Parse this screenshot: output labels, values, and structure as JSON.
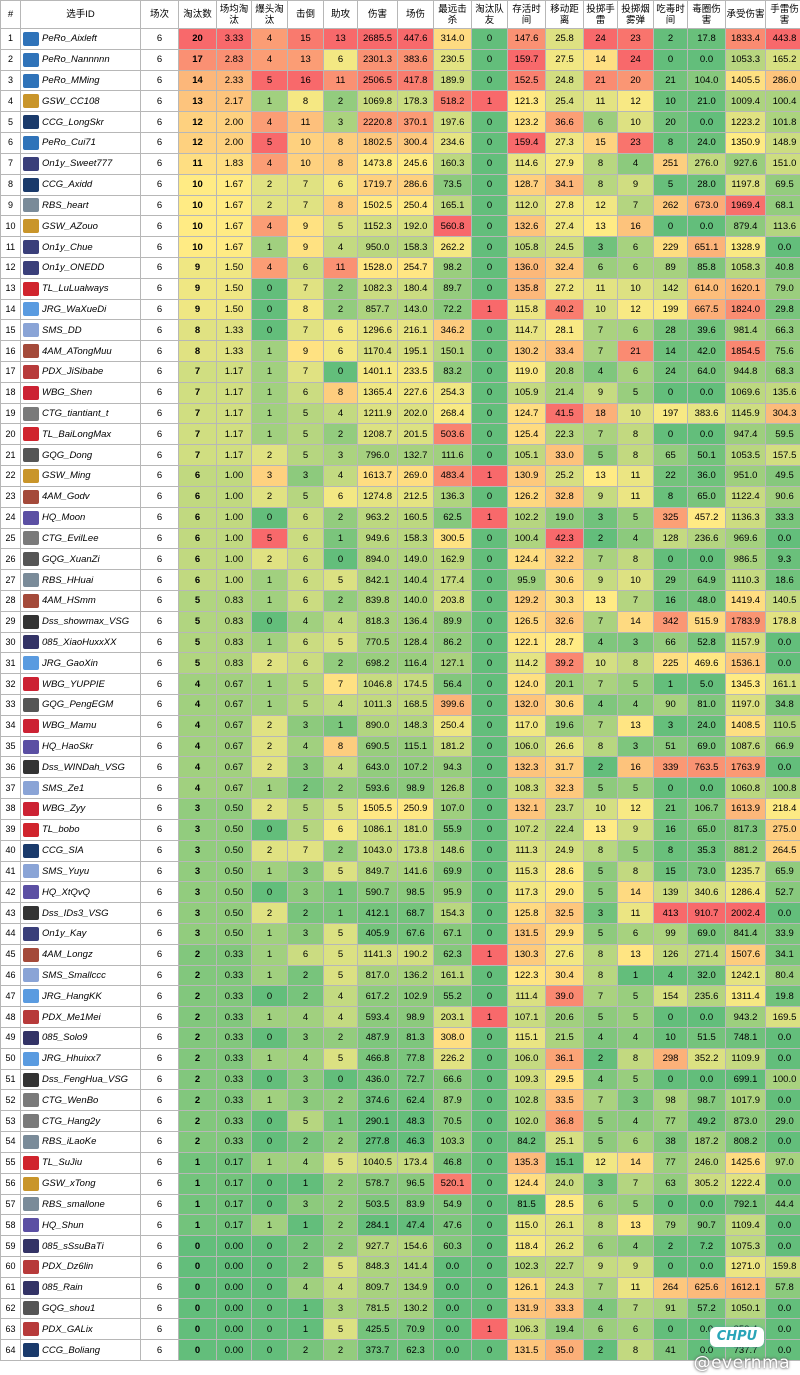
{
  "headers": [
    "#",
    "选手ID",
    "场次",
    "淘汰数",
    "场均淘汰",
    "爆头淘汰",
    "击倒",
    "助攻",
    "伤害",
    "场伤",
    "最远击杀",
    "淘汰队友",
    "存活时间",
    "移动距离",
    "投掷手雷",
    "投掷烟雾弹",
    "吃毒时间",
    "毒圈伤害",
    "承受伤害",
    "手雷伤害"
  ],
  "logo_colors": {
    "PeRo": "#2f73b9",
    "GSW": "#c9952a",
    "CCG": "#1a3a6b",
    "On1y": "#3a3f7a",
    "RBS": "#7a8b99",
    "TL": "#d0242d",
    "JRG": "#5a9be0",
    "SMS": "#8aa4d6",
    "4AM": "#a44a3a",
    "PDX": "#b73a3a",
    "WBG": "#cc2233",
    "CTG": "#7a7a7a",
    "GQG": "#555555",
    "HQ": "#5b4fa3",
    "Dss": "#333333",
    "085": "#333366"
  },
  "rows": [
    [
      "1",
      "PeRo_Aixleft",
      "6",
      "20",
      "3.33",
      "4",
      "15",
      "13",
      "2685.5",
      "447.6",
      "314.0",
      "0",
      "147.6",
      "25.8",
      "24",
      "23",
      "2",
      "17.8",
      "1833.4",
      "443.8"
    ],
    [
      "2",
      "PeRo_Nannnnn",
      "6",
      "17",
      "2.83",
      "4",
      "13",
      "6",
      "2301.3",
      "383.6",
      "230.5",
      "0",
      "159.7",
      "27.5",
      "14",
      "24",
      "0",
      "0.0",
      "1053.3",
      "165.2"
    ],
    [
      "3",
      "PeRo_MMing",
      "6",
      "14",
      "2.33",
      "5",
      "16",
      "11",
      "2506.5",
      "417.8",
      "189.9",
      "0",
      "152.5",
      "24.8",
      "21",
      "20",
      "21",
      "104.0",
      "1405.5",
      "286.0"
    ],
    [
      "4",
      "GSW_CC108",
      "6",
      "13",
      "2.17",
      "1",
      "8",
      "2",
      "1069.8",
      "178.3",
      "518.2",
      "1",
      "121.3",
      "25.4",
      "11",
      "12",
      "10",
      "21.0",
      "1009.4",
      "100.4"
    ],
    [
      "5",
      "CCG_LongSkr",
      "6",
      "12",
      "2.00",
      "4",
      "11",
      "3",
      "2220.8",
      "370.1",
      "197.6",
      "0",
      "123.2",
      "36.6",
      "6",
      "10",
      "20",
      "0.0",
      "1223.2",
      "101.8"
    ],
    [
      "6",
      "PeRo_Cui71",
      "6",
      "12",
      "2.00",
      "5",
      "10",
      "8",
      "1802.5",
      "300.4",
      "234.6",
      "0",
      "159.4",
      "27.3",
      "15",
      "23",
      "8",
      "24.0",
      "1350.9",
      "148.9"
    ],
    [
      "7",
      "On1y_Sweet777",
      "6",
      "11",
      "1.83",
      "4",
      "10",
      "8",
      "1473.8",
      "245.6",
      "160.3",
      "0",
      "114.6",
      "27.9",
      "8",
      "4",
      "251",
      "276.0",
      "927.6",
      "151.0"
    ],
    [
      "8",
      "CCG_Axidd",
      "6",
      "10",
      "1.67",
      "2",
      "7",
      "6",
      "1719.7",
      "286.6",
      "73.5",
      "0",
      "128.7",
      "34.1",
      "8",
      "9",
      "5",
      "28.0",
      "1197.8",
      "69.5"
    ],
    [
      "9",
      "RBS_heart",
      "6",
      "10",
      "1.67",
      "2",
      "7",
      "8",
      "1502.5",
      "250.4",
      "165.1",
      "0",
      "112.0",
      "27.8",
      "12",
      "7",
      "262",
      "673.0",
      "1969.4",
      "68.1"
    ],
    [
      "10",
      "GSW_AZouo",
      "6",
      "10",
      "1.67",
      "4",
      "9",
      "5",
      "1152.3",
      "192.0",
      "560.8",
      "0",
      "132.6",
      "27.4",
      "13",
      "16",
      "0",
      "0.0",
      "879.4",
      "113.6"
    ],
    [
      "11",
      "On1y_Chue",
      "6",
      "10",
      "1.67",
      "1",
      "9",
      "4",
      "950.0",
      "158.3",
      "262.2",
      "0",
      "105.8",
      "24.5",
      "3",
      "6",
      "229",
      "651.1",
      "1328.9",
      "0.0"
    ],
    [
      "12",
      "On1y_ONEDD",
      "6",
      "9",
      "1.50",
      "4",
      "6",
      "11",
      "1528.0",
      "254.7",
      "98.2",
      "0",
      "136.0",
      "32.4",
      "6",
      "6",
      "89",
      "85.8",
      "1058.3",
      "40.8"
    ],
    [
      "13",
      "TL_LuLualways",
      "6",
      "9",
      "1.50",
      "0",
      "7",
      "2",
      "1082.3",
      "180.4",
      "89.7",
      "0",
      "135.8",
      "27.2",
      "11",
      "10",
      "142",
      "614.0",
      "1620.1",
      "79.0"
    ],
    [
      "14",
      "JRG_WaXueDi",
      "6",
      "9",
      "1.50",
      "0",
      "8",
      "2",
      "857.7",
      "143.0",
      "72.2",
      "1",
      "115.8",
      "40.2",
      "10",
      "12",
      "199",
      "667.5",
      "1824.0",
      "29.8"
    ],
    [
      "15",
      "SMS_DD",
      "6",
      "8",
      "1.33",
      "0",
      "7",
      "6",
      "1296.6",
      "216.1",
      "346.2",
      "0",
      "114.7",
      "28.1",
      "7",
      "6",
      "28",
      "39.6",
      "981.4",
      "66.3"
    ],
    [
      "16",
      "4AM_ATongMuu",
      "6",
      "8",
      "1.33",
      "1",
      "9",
      "6",
      "1170.4",
      "195.1",
      "150.1",
      "0",
      "130.2",
      "33.4",
      "7",
      "21",
      "14",
      "42.0",
      "1854.5",
      "75.6"
    ],
    [
      "17",
      "PDX_JiSibabe",
      "6",
      "7",
      "1.17",
      "1",
      "7",
      "0",
      "1401.1",
      "233.5",
      "83.2",
      "0",
      "119.0",
      "20.8",
      "4",
      "6",
      "24",
      "64.0",
      "944.8",
      "68.3"
    ],
    [
      "18",
      "WBG_Shen",
      "6",
      "7",
      "1.17",
      "1",
      "6",
      "8",
      "1365.4",
      "227.6",
      "254.3",
      "0",
      "105.9",
      "21.4",
      "9",
      "5",
      "0",
      "0.0",
      "1069.6",
      "135.6"
    ],
    [
      "19",
      "CTG_tiantiant_t",
      "6",
      "7",
      "1.17",
      "1",
      "5",
      "4",
      "1211.9",
      "202.0",
      "268.4",
      "0",
      "124.7",
      "41.5",
      "18",
      "10",
      "197",
      "383.6",
      "1145.9",
      "304.3"
    ],
    [
      "20",
      "TL_BaiLongMax",
      "6",
      "7",
      "1.17",
      "1",
      "5",
      "2",
      "1208.7",
      "201.5",
      "503.6",
      "0",
      "125.4",
      "22.3",
      "7",
      "8",
      "0",
      "0.0",
      "947.4",
      "59.5"
    ],
    [
      "21",
      "GQG_Dong",
      "6",
      "7",
      "1.17",
      "2",
      "5",
      "3",
      "796.0",
      "132.7",
      "111.6",
      "0",
      "105.1",
      "33.0",
      "5",
      "8",
      "65",
      "50.1",
      "1053.5",
      "157.5"
    ],
    [
      "22",
      "GSW_Ming",
      "6",
      "6",
      "1.00",
      "3",
      "3",
      "4",
      "1613.7",
      "269.0",
      "483.4",
      "1",
      "130.9",
      "25.2",
      "13",
      "11",
      "22",
      "36.0",
      "951.0",
      "49.5"
    ],
    [
      "23",
      "4AM_Godv",
      "6",
      "6",
      "1.00",
      "2",
      "5",
      "6",
      "1274.8",
      "212.5",
      "136.3",
      "0",
      "126.2",
      "32.8",
      "9",
      "11",
      "8",
      "65.0",
      "1122.4",
      "90.6"
    ],
    [
      "24",
      "HQ_Moon",
      "6",
      "6",
      "1.00",
      "0",
      "6",
      "2",
      "963.2",
      "160.5",
      "62.5",
      "1",
      "102.2",
      "19.0",
      "3",
      "5",
      "325",
      "457.2",
      "1136.3",
      "33.3"
    ],
    [
      "25",
      "CTG_EvilLee",
      "6",
      "6",
      "1.00",
      "5",
      "6",
      "1",
      "949.6",
      "158.3",
      "300.5",
      "0",
      "100.4",
      "42.3",
      "2",
      "4",
      "128",
      "236.6",
      "969.6",
      "0.0"
    ],
    [
      "26",
      "GQG_XuanZi",
      "6",
      "6",
      "1.00",
      "2",
      "6",
      "0",
      "894.0",
      "149.0",
      "162.9",
      "0",
      "124.4",
      "32.2",
      "7",
      "8",
      "0",
      "0.0",
      "986.5",
      "9.3"
    ],
    [
      "27",
      "RBS_HHuai",
      "6",
      "6",
      "1.00",
      "1",
      "6",
      "5",
      "842.1",
      "140.4",
      "177.4",
      "0",
      "95.9",
      "30.6",
      "9",
      "10",
      "29",
      "64.9",
      "1110.3",
      "18.6"
    ],
    [
      "28",
      "4AM_HSmm",
      "6",
      "5",
      "0.83",
      "1",
      "6",
      "2",
      "839.8",
      "140.0",
      "203.8",
      "0",
      "129.2",
      "30.3",
      "13",
      "7",
      "16",
      "48.0",
      "1419.4",
      "140.5"
    ],
    [
      "29",
      "Dss_showmax_VSG",
      "6",
      "5",
      "0.83",
      "0",
      "4",
      "4",
      "818.3",
      "136.4",
      "89.9",
      "0",
      "126.5",
      "32.6",
      "7",
      "14",
      "342",
      "515.9",
      "1783.9",
      "178.8"
    ],
    [
      "30",
      "085_XiaoHuxxXX",
      "6",
      "5",
      "0.83",
      "1",
      "6",
      "5",
      "770.5",
      "128.4",
      "86.2",
      "0",
      "122.1",
      "28.7",
      "4",
      "3",
      "66",
      "52.8",
      "1157.9",
      "0.0"
    ],
    [
      "31",
      "JRG_GaoXin",
      "6",
      "5",
      "0.83",
      "2",
      "6",
      "2",
      "698.2",
      "116.4",
      "127.1",
      "0",
      "114.2",
      "39.2",
      "10",
      "8",
      "225",
      "469.6",
      "1536.1",
      "0.0"
    ],
    [
      "32",
      "WBG_YUPPIE",
      "6",
      "4",
      "0.67",
      "1",
      "5",
      "7",
      "1046.8",
      "174.5",
      "56.4",
      "0",
      "124.0",
      "20.1",
      "7",
      "5",
      "1",
      "5.0",
      "1345.3",
      "161.1"
    ],
    [
      "33",
      "GQG_PengEGM",
      "6",
      "4",
      "0.67",
      "1",
      "5",
      "4",
      "1011.3",
      "168.5",
      "399.6",
      "0",
      "132.0",
      "30.6",
      "4",
      "4",
      "90",
      "81.0",
      "1197.0",
      "34.8"
    ],
    [
      "34",
      "WBG_Mamu",
      "6",
      "4",
      "0.67",
      "2",
      "3",
      "1",
      "890.0",
      "148.3",
      "250.4",
      "0",
      "117.0",
      "19.6",
      "7",
      "13",
      "3",
      "24.0",
      "1408.5",
      "110.5"
    ],
    [
      "35",
      "HQ_HaoSkr",
      "6",
      "4",
      "0.67",
      "2",
      "4",
      "8",
      "690.5",
      "115.1",
      "181.2",
      "0",
      "106.0",
      "26.6",
      "8",
      "3",
      "51",
      "69.0",
      "1087.6",
      "66.9"
    ],
    [
      "36",
      "Dss_WINDah_VSG",
      "6",
      "4",
      "0.67",
      "2",
      "3",
      "4",
      "643.0",
      "107.2",
      "94.3",
      "0",
      "132.3",
      "31.7",
      "2",
      "16",
      "339",
      "763.5",
      "1763.9",
      "0.0"
    ],
    [
      "37",
      "SMS_Ze1",
      "6",
      "4",
      "0.67",
      "1",
      "2",
      "2",
      "593.6",
      "98.9",
      "126.8",
      "0",
      "108.3",
      "32.3",
      "5",
      "5",
      "0",
      "0.0",
      "1060.8",
      "100.8"
    ],
    [
      "38",
      "WBG_Zyy",
      "6",
      "3",
      "0.50",
      "2",
      "5",
      "5",
      "1505.5",
      "250.9",
      "107.0",
      "0",
      "132.1",
      "23.7",
      "10",
      "12",
      "21",
      "106.7",
      "1613.9",
      "218.4"
    ],
    [
      "39",
      "TL_bobo",
      "6",
      "3",
      "0.50",
      "0",
      "5",
      "6",
      "1086.1",
      "181.0",
      "55.9",
      "0",
      "107.2",
      "22.4",
      "13",
      "9",
      "16",
      "65.0",
      "817.3",
      "275.0"
    ],
    [
      "40",
      "CCG_SIA",
      "6",
      "3",
      "0.50",
      "2",
      "7",
      "2",
      "1043.0",
      "173.8",
      "148.6",
      "0",
      "111.3",
      "24.9",
      "8",
      "5",
      "8",
      "35.3",
      "881.2",
      "264.5"
    ],
    [
      "41",
      "SMS_Yuyu",
      "6",
      "3",
      "0.50",
      "1",
      "3",
      "5",
      "849.7",
      "141.6",
      "69.9",
      "0",
      "115.3",
      "28.6",
      "5",
      "8",
      "15",
      "73.0",
      "1235.7",
      "65.9"
    ],
    [
      "42",
      "HQ_XtQvQ",
      "6",
      "3",
      "0.50",
      "0",
      "3",
      "1",
      "590.7",
      "98.5",
      "95.9",
      "0",
      "117.3",
      "29.0",
      "5",
      "14",
      "139",
      "340.6",
      "1286.4",
      "52.7"
    ],
    [
      "43",
      "Dss_IDs3_VSG",
      "6",
      "3",
      "0.50",
      "2",
      "2",
      "1",
      "412.1",
      "68.7",
      "154.3",
      "0",
      "125.8",
      "32.5",
      "3",
      "11",
      "413",
      "910.7",
      "2002.4",
      "0.0"
    ],
    [
      "44",
      "On1y_Kay",
      "6",
      "3",
      "0.50",
      "1",
      "3",
      "5",
      "405.9",
      "67.6",
      "67.1",
      "0",
      "131.5",
      "29.9",
      "5",
      "6",
      "99",
      "69.0",
      "841.4",
      "33.9"
    ],
    [
      "45",
      "4AM_Longz",
      "6",
      "2",
      "0.33",
      "1",
      "6",
      "5",
      "1141.3",
      "190.2",
      "62.3",
      "1",
      "130.3",
      "27.6",
      "8",
      "13",
      "126",
      "271.4",
      "1507.6",
      "34.1"
    ],
    [
      "46",
      "SMS_Smallccc",
      "6",
      "2",
      "0.33",
      "1",
      "2",
      "5",
      "817.0",
      "136.2",
      "161.1",
      "0",
      "122.3",
      "30.4",
      "8",
      "1",
      "4",
      "32.0",
      "1242.1",
      "80.4"
    ],
    [
      "47",
      "JRG_HangKK",
      "6",
      "2",
      "0.33",
      "0",
      "2",
      "4",
      "617.2",
      "102.9",
      "55.2",
      "0",
      "111.4",
      "39.0",
      "7",
      "5",
      "154",
      "235.6",
      "1311.4",
      "19.8"
    ],
    [
      "48",
      "PDX_Me1Mei",
      "6",
      "2",
      "0.33",
      "1",
      "4",
      "4",
      "593.4",
      "98.9",
      "203.1",
      "1",
      "107.1",
      "20.6",
      "5",
      "5",
      "0",
      "0.0",
      "943.2",
      "169.5"
    ],
    [
      "49",
      "085_Solo9",
      "6",
      "2",
      "0.33",
      "0",
      "3",
      "2",
      "487.9",
      "81.3",
      "308.0",
      "0",
      "115.1",
      "21.5",
      "4",
      "4",
      "10",
      "51.5",
      "748.1",
      "0.0"
    ],
    [
      "50",
      "JRG_Hhuixx7",
      "6",
      "2",
      "0.33",
      "1",
      "4",
      "5",
      "466.8",
      "77.8",
      "226.2",
      "0",
      "106.0",
      "36.1",
      "2",
      "8",
      "298",
      "352.2",
      "1109.9",
      "0.0"
    ],
    [
      "51",
      "Dss_FengHua_VSG",
      "6",
      "2",
      "0.33",
      "0",
      "3",
      "0",
      "436.0",
      "72.7",
      "66.6",
      "0",
      "109.3",
      "29.5",
      "4",
      "5",
      "0",
      "0.0",
      "699.1",
      "100.0"
    ],
    [
      "52",
      "CTG_WenBo",
      "6",
      "2",
      "0.33",
      "1",
      "3",
      "2",
      "374.6",
      "62.4",
      "87.9",
      "0",
      "102.8",
      "33.5",
      "7",
      "3",
      "98",
      "98.7",
      "1017.9",
      "0.0"
    ],
    [
      "53",
      "CTG_Hang2y",
      "6",
      "2",
      "0.33",
      "0",
      "5",
      "1",
      "290.1",
      "48.3",
      "70.5",
      "0",
      "102.0",
      "36.8",
      "5",
      "4",
      "77",
      "49.2",
      "873.0",
      "29.0"
    ],
    [
      "54",
      "RBS_iLaoKe",
      "6",
      "2",
      "0.33",
      "0",
      "2",
      "2",
      "277.8",
      "46.3",
      "103.3",
      "0",
      "84.2",
      "25.1",
      "5",
      "6",
      "38",
      "187.2",
      "808.2",
      "0.0"
    ],
    [
      "55",
      "TL_SuJiu",
      "6",
      "1",
      "0.17",
      "1",
      "4",
      "5",
      "1040.5",
      "173.4",
      "46.8",
      "0",
      "135.3",
      "15.1",
      "12",
      "14",
      "77",
      "246.0",
      "1425.6",
      "97.0"
    ],
    [
      "56",
      "GSW_xTong",
      "6",
      "1",
      "0.17",
      "0",
      "1",
      "2",
      "578.7",
      "96.5",
      "520.1",
      "0",
      "124.4",
      "24.0",
      "3",
      "7",
      "63",
      "305.2",
      "1222.4",
      "0.0"
    ],
    [
      "57",
      "RBS_smallone",
      "6",
      "1",
      "0.17",
      "0",
      "3",
      "2",
      "503.5",
      "83.9",
      "54.9",
      "0",
      "81.5",
      "28.5",
      "6",
      "5",
      "0",
      "0.0",
      "792.1",
      "44.4"
    ],
    [
      "58",
      "HQ_Shun",
      "6",
      "1",
      "0.17",
      "1",
      "1",
      "2",
      "284.1",
      "47.4",
      "47.6",
      "0",
      "115.0",
      "26.1",
      "8",
      "13",
      "79",
      "90.7",
      "1109.4",
      "0.0"
    ],
    [
      "59",
      "085_sSsuBaTi",
      "6",
      "0",
      "0.00",
      "0",
      "2",
      "2",
      "927.7",
      "154.6",
      "60.3",
      "0",
      "118.4",
      "26.2",
      "6",
      "4",
      "2",
      "7.2",
      "1075.3",
      "0.0"
    ],
    [
      "60",
      "PDX_Dz6lin",
      "6",
      "0",
      "0.00",
      "0",
      "2",
      "5",
      "848.3",
      "141.4",
      "0.0",
      "0",
      "102.3",
      "22.7",
      "9",
      "9",
      "0",
      "0.0",
      "1271.0",
      "159.8"
    ],
    [
      "61",
      "085_Rain",
      "6",
      "0",
      "0.00",
      "0",
      "4",
      "4",
      "809.7",
      "134.9",
      "0.0",
      "0",
      "126.1",
      "24.3",
      "7",
      "11",
      "264",
      "625.6",
      "1612.1",
      "57.8"
    ],
    [
      "62",
      "GQG_shou1",
      "6",
      "0",
      "0.00",
      "0",
      "1",
      "3",
      "781.5",
      "130.2",
      "0.0",
      "0",
      "131.9",
      "33.3",
      "4",
      "7",
      "91",
      "57.2",
      "1050.1",
      "0.0"
    ],
    [
      "63",
      "PDX_GALix",
      "6",
      "0",
      "0.00",
      "0",
      "1",
      "5",
      "425.5",
      "70.9",
      "0.0",
      "1",
      "106.3",
      "19.4",
      "6",
      "6",
      "0",
      "0.0",
      "853.4",
      "0.0"
    ],
    [
      "64",
      "CCG_Boliang",
      "6",
      "0",
      "0.00",
      "0",
      "2",
      "2",
      "373.7",
      "62.3",
      "0.0",
      "0",
      "131.5",
      "35.0",
      "2",
      "8",
      "41",
      "0.0",
      "737.7",
      "0.0"
    ]
  ],
  "watermark": "@evernma",
  "badge": "CHPU"
}
